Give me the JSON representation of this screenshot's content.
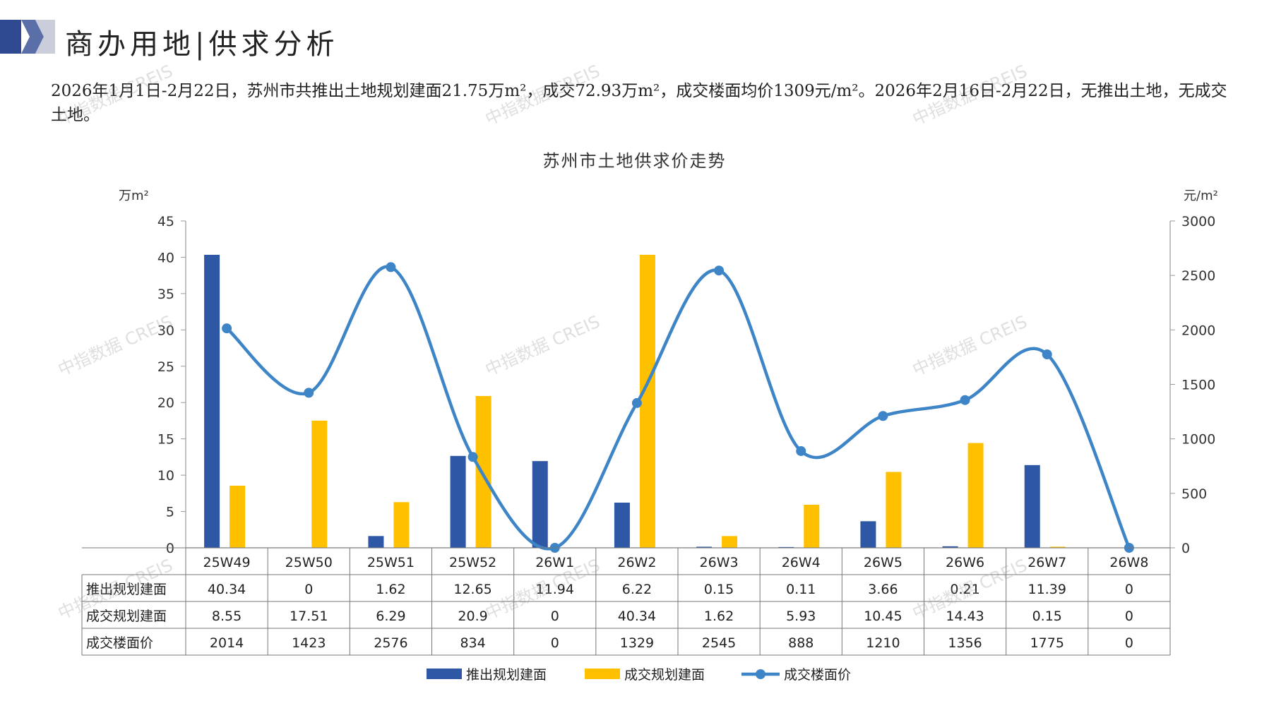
{
  "header": {
    "title": "商办用地|供求分析",
    "description": "2026年1月1日-2月22日，苏州市共推出土地规划建面21.75万m²，成交72.93万m²，成交楼面均价1309元/m²。2026年2月16日-2月22日，无推出土地，无成交土地。"
  },
  "watermark": "中指数据 CREIS",
  "colors": {
    "supply": "#2E58A6",
    "deal": "#FFC000",
    "price": "#3D85C6",
    "logo_dark": "#2F4A91",
    "logo_light": "#C9CEDA"
  },
  "chart_data": {
    "type": "bar",
    "title": "苏州市土地供求价走势",
    "y_left_unit": "万m²",
    "y_right_unit": "元/m²",
    "ylim_left": [
      0,
      45
    ],
    "ylim_right": [
      0,
      3000
    ],
    "yticks_left": [
      "45",
      "40",
      "35",
      "30",
      "25",
      "20",
      "15",
      "10",
      "5",
      "0"
    ],
    "yticks_right": [
      "3000",
      "2500",
      "2000",
      "1500",
      "1000",
      "500",
      "0"
    ],
    "categories": [
      "25W49",
      "25W50",
      "25W51",
      "25W52",
      "26W1",
      "26W2",
      "26W3",
      "26W4",
      "26W5",
      "26W6",
      "26W7",
      "26W8"
    ],
    "series": [
      {
        "name": "推出规划建面",
        "kind": "bar",
        "axis": "left",
        "color": "#2E58A6",
        "values": [
          40.34,
          0,
          1.62,
          12.65,
          11.94,
          6.22,
          0.15,
          0.11,
          3.66,
          0.21,
          11.39,
          0
        ],
        "labels": [
          "40.34",
          "0",
          "1.62",
          "12.65",
          "11.94",
          "6.22",
          "0.15",
          "0.11",
          "3.66",
          "0.21",
          "11.39",
          "0"
        ]
      },
      {
        "name": "成交规划建面",
        "kind": "bar",
        "axis": "left",
        "color": "#FFC000",
        "values": [
          8.55,
          17.51,
          6.29,
          20.9,
          0,
          40.34,
          1.62,
          5.93,
          10.45,
          14.43,
          0.15,
          0
        ],
        "labels": [
          "8.55",
          "17.51",
          "6.29",
          "20.9",
          "0",
          "40.34",
          "1.62",
          "5.93",
          "10.45",
          "14.43",
          "0.15",
          "0"
        ]
      },
      {
        "name": "成交楼面价",
        "kind": "line",
        "axis": "right",
        "color": "#3D85C6",
        "values": [
          2014,
          1423,
          2576,
          834,
          0,
          1329,
          2545,
          888,
          1210,
          1356,
          1775,
          0
        ],
        "labels": [
          "2014",
          "1423",
          "2576",
          "834",
          "0",
          "1329",
          "2545",
          "888",
          "1210",
          "1356",
          "1775",
          "0"
        ]
      }
    ],
    "legend": [
      "推出规划建面",
      "成交规划建面",
      "成交楼面价"
    ],
    "legend_position": "bottom",
    "grid": false
  }
}
